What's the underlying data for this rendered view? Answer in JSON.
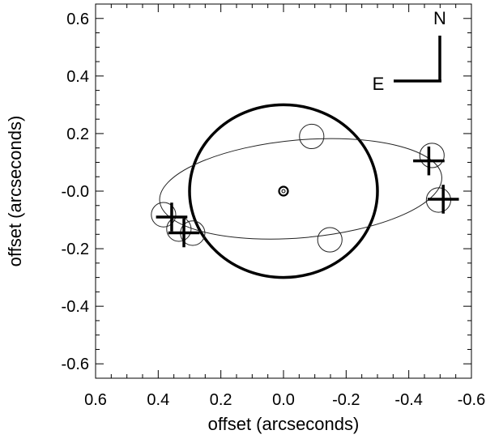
{
  "chart_data": {
    "type": "scatter",
    "xlabel": "offset (arcseconds)",
    "ylabel": "offset (arcseconds)",
    "xlim": [
      0.6,
      -0.6
    ],
    "ylim": [
      -0.65,
      0.65
    ],
    "x_reversed": true,
    "x_ticks": [
      "0.6",
      "0.4",
      "0.2",
      "0.0",
      "-0.2",
      "-0.4",
      "-0.6"
    ],
    "x_tick_values": [
      0.6,
      0.4,
      0.2,
      0.0,
      -0.2,
      -0.4,
      -0.6
    ],
    "y_ticks": [
      "0.6",
      "0.4",
      "0.2",
      "-0.0",
      "-0.2",
      "-0.4",
      "-0.6"
    ],
    "y_tick_values": [
      0.6,
      0.4,
      0.2,
      0.0,
      -0.2,
      -0.4,
      -0.6
    ],
    "grid": false,
    "compass": {
      "north": "N",
      "east": "E"
    },
    "big_circle": {
      "center": [
        0,
        0
      ],
      "radius": 0.3
    },
    "central_marker": {
      "center": [
        0,
        0
      ]
    },
    "ellipse": {
      "center": [
        -0.055,
        0.008
      ],
      "semi_major": 0.452,
      "semi_minor": 0.17,
      "angle_deg": 5
    },
    "open_circles": {
      "radius": 0.039,
      "points": [
        [
          -0.09,
          0.19
        ],
        [
          -0.474,
          0.124
        ],
        [
          -0.495,
          -0.031
        ],
        [
          0.383,
          -0.082
        ],
        [
          0.334,
          -0.132
        ],
        [
          0.29,
          -0.146
        ],
        [
          -0.148,
          -0.169
        ]
      ]
    },
    "crosses": {
      "half_size": 0.05,
      "points": [
        [
          -0.464,
          0.105
        ],
        [
          -0.51,
          -0.028
        ],
        [
          0.357,
          -0.09
        ],
        [
          0.318,
          -0.145
        ]
      ]
    }
  }
}
